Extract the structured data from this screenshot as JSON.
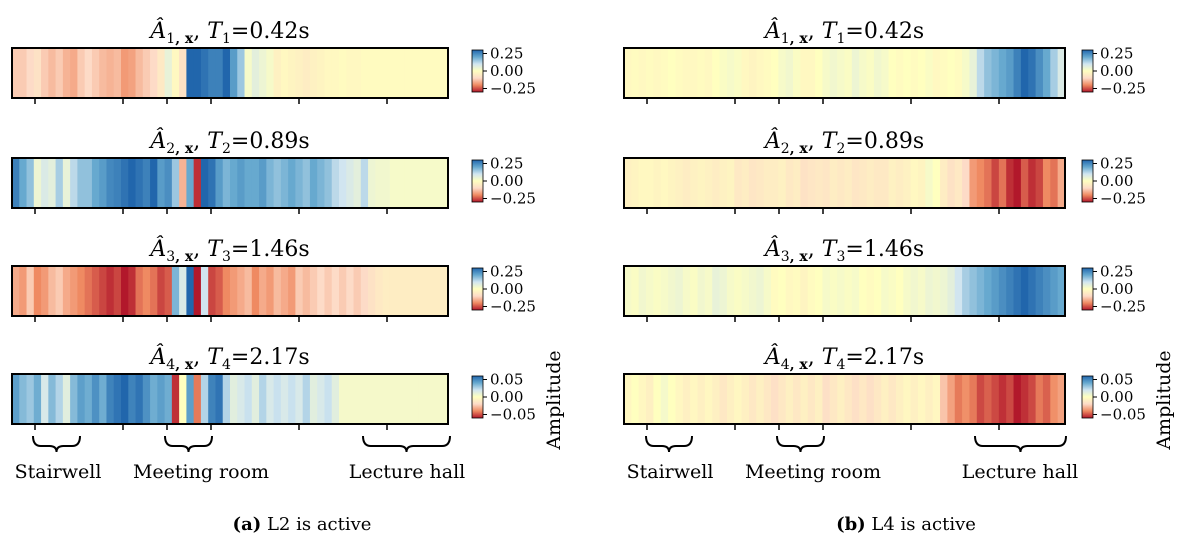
{
  "figure": {
    "cmap": [
      "#b2182b",
      "#ef8a62",
      "#fddbc7",
      "#ffffbf",
      "#d1e5f0",
      "#67a9cf",
      "#2166ac"
    ],
    "cbar_label": "Amplitude",
    "captions": [
      {
        "tag": "(a)",
        "text": " L2 is active"
      },
      {
        "tag": "(b)",
        "text": " L4 is active"
      }
    ],
    "region_labels": [
      "Stairwell",
      "Meeting room",
      "Lecture hall"
    ],
    "panels": [
      {
        "rows": [
          {
            "idx": "1",
            "period": "0.42s",
            "ticks": [
              "0.25",
              "0.00",
              "−0.25"
            ]
          },
          {
            "idx": "2",
            "period": "0.89s",
            "ticks": [
              "0.25",
              "0.00",
              "−0.25"
            ]
          },
          {
            "idx": "3",
            "period": "1.46s",
            "ticks": [
              "0.25",
              "0.00",
              "−0.25"
            ]
          },
          {
            "idx": "4",
            "period": "2.17s",
            "ticks": [
              "0.05",
              "0.00",
              "−0.05"
            ]
          }
        ]
      },
      {
        "rows": [
          {
            "idx": "1",
            "period": "0.42s",
            "ticks": [
              "0.25",
              "0.00",
              "−0.25"
            ]
          },
          {
            "idx": "2",
            "period": "0.89s",
            "ticks": [
              "0.25",
              "0.00",
              "−0.25"
            ]
          },
          {
            "idx": "3",
            "period": "1.46s",
            "ticks": [
              "0.25",
              "0.00",
              "−0.25"
            ]
          },
          {
            "idx": "4",
            "period": "2.17s",
            "ticks": [
              "0.05",
              "0.00",
              "−0.05"
            ]
          }
        ]
      }
    ]
  },
  "chart_data": [
    {
      "type": "heatmap",
      "panel": "(a) L2 is active",
      "rows": [
        {
          "title": "Â1,x, T1=0.42s",
          "vmin": -0.3,
          "vmax": 0.3,
          "values": [
            -0.12,
            -0.12,
            -0.1,
            -0.08,
            -0.12,
            -0.14,
            -0.12,
            -0.15,
            -0.16,
            -0.12,
            -0.1,
            -0.12,
            -0.14,
            -0.15,
            -0.14,
            -0.18,
            -0.17,
            -0.14,
            -0.12,
            -0.1,
            -0.06,
            0.05,
            -0.02,
            -0.08,
            0.3,
            0.32,
            0.28,
            0.26,
            0.26,
            0.3,
            0.22,
            0.15,
            0.02,
            0.06,
            0.04,
            0.02,
            -0.04,
            -0.02,
            -0.03,
            -0.04,
            -0.05,
            -0.04,
            -0.03,
            -0.02,
            -0.02,
            -0.01,
            -0.02,
            -0.02,
            -0.01,
            -0.01,
            -0.01,
            -0.01,
            -0.01,
            -0.01,
            -0.01,
            -0.01,
            -0.01,
            -0.01,
            -0.01,
            -0.01
          ]
        },
        {
          "title": "Â2,x, T2=0.89s",
          "vmin": -0.3,
          "vmax": 0.3,
          "values": [
            0.26,
            0.2,
            0.16,
            0.04,
            0.08,
            0.06,
            0.14,
            0.05,
            0.12,
            0.16,
            0.16,
            0.2,
            0.22,
            0.25,
            0.26,
            0.28,
            0.3,
            0.28,
            0.26,
            0.3,
            0.22,
            0.24,
            0.15,
            -0.15,
            0.2,
            -0.28,
            0.3,
            0.28,
            0.22,
            0.18,
            0.2,
            0.22,
            0.2,
            0.2,
            0.22,
            0.18,
            0.16,
            0.18,
            0.2,
            0.18,
            0.16,
            0.2,
            0.18,
            0.16,
            0.12,
            0.1,
            0.08,
            0.06,
            0.12,
            0.04,
            0.03,
            0.03,
            0.02,
            0.02,
            0.02,
            0.02,
            0.02,
            0.02,
            0.02,
            0.02
          ]
        },
        {
          "title": "Â3,x, T3=1.46s",
          "vmin": -0.3,
          "vmax": 0.3,
          "values": [
            -0.16,
            -0.18,
            -0.12,
            -0.2,
            -0.18,
            -0.14,
            -0.12,
            -0.16,
            -0.18,
            -0.2,
            -0.22,
            -0.24,
            -0.26,
            -0.28,
            -0.26,
            -0.3,
            -0.28,
            -0.22,
            -0.2,
            -0.22,
            -0.26,
            -0.24,
            0.18,
            0.08,
            0.3,
            -0.3,
            0.1,
            -0.26,
            -0.24,
            -0.2,
            -0.18,
            -0.16,
            -0.14,
            -0.2,
            -0.16,
            -0.18,
            -0.14,
            -0.16,
            -0.18,
            -0.12,
            -0.14,
            -0.12,
            -0.1,
            -0.12,
            -0.1,
            -0.12,
            -0.1,
            -0.12,
            -0.1,
            -0.08,
            -0.06,
            -0.05,
            -0.05,
            -0.05,
            -0.05,
            -0.05,
            -0.05,
            -0.05,
            -0.05,
            -0.05
          ]
        },
        {
          "title": "Â4,x, T4=2.17s",
          "vmin": -0.07,
          "vmax": 0.07,
          "values": [
            0.05,
            0.04,
            0.035,
            0.045,
            0.02,
            0.04,
            0.03,
            0.015,
            0.04,
            0.05,
            0.045,
            0.055,
            0.045,
            0.06,
            0.065,
            0.07,
            0.06,
            0.065,
            0.055,
            0.045,
            0.05,
            0.045,
            -0.065,
            0.0,
            0.05,
            -0.05,
            0.03,
            0.06,
            0.065,
            0.03,
            0.015,
            0.02,
            0.025,
            0.015,
            0.03,
            0.02,
            0.025,
            0.02,
            0.025,
            0.02,
            0.03,
            0.015,
            0.02,
            0.025,
            0.015,
            0.005,
            0.005,
            0.005,
            0.005,
            0.005,
            0.005,
            0.005,
            0.005,
            0.005,
            0.005,
            0.005,
            0.005,
            0.005,
            0.005,
            0.005
          ]
        }
      ]
    },
    {
      "type": "heatmap",
      "panel": "(b) L4 is active",
      "rows": [
        {
          "title": "Â1,x, T1=0.42s",
          "vmin": -0.3,
          "vmax": 0.3,
          "values": [
            -0.02,
            -0.01,
            -0.02,
            -0.01,
            -0.02,
            -0.01,
            0.0,
            -0.01,
            -0.02,
            -0.02,
            -0.01,
            -0.02,
            0.0,
            0.01,
            0.02,
            0.01,
            -0.02,
            -0.03,
            -0.02,
            -0.01,
            0.0,
            0.02,
            0.03,
            0.01,
            -0.02,
            -0.02,
            0.0,
            0.02,
            0.03,
            0.02,
            0.01,
            0.04,
            0.02,
            0.01,
            0.03,
            0.02,
            0.0,
            -0.01,
            0.0,
            -0.01,
            0.0,
            0.01,
            -0.02,
            -0.01,
            0.0,
            -0.01,
            0.02,
            0.05,
            0.12,
            0.16,
            0.18,
            0.2,
            0.22,
            0.26,
            0.3,
            0.28,
            0.24,
            0.2,
            0.14,
            0.08
          ]
        },
        {
          "title": "Â2,x, T2=0.89s",
          "vmin": -0.3,
          "vmax": 0.3,
          "values": [
            -0.04,
            -0.03,
            -0.02,
            -0.02,
            -0.03,
            -0.02,
            -0.03,
            -0.04,
            -0.05,
            -0.04,
            -0.03,
            -0.04,
            -0.05,
            -0.04,
            -0.03,
            -0.06,
            -0.05,
            -0.07,
            -0.06,
            -0.05,
            -0.05,
            -0.04,
            -0.06,
            -0.05,
            -0.08,
            -0.07,
            -0.06,
            -0.07,
            -0.05,
            -0.06,
            -0.05,
            -0.07,
            -0.06,
            -0.05,
            -0.06,
            -0.06,
            -0.04,
            -0.05,
            -0.04,
            -0.02,
            -0.03,
            0.02,
            0.0,
            -0.05,
            -0.08,
            -0.06,
            -0.1,
            -0.18,
            -0.2,
            -0.22,
            -0.26,
            -0.22,
            -0.28,
            -0.3,
            -0.24,
            -0.28,
            -0.26,
            -0.2,
            -0.22,
            -0.16
          ]
        },
        {
          "title": "Â3,x, T3=1.46s",
          "vmin": -0.3,
          "vmax": 0.3,
          "values": [
            0.02,
            0.01,
            0.03,
            0.02,
            0.01,
            0.02,
            0.03,
            0.04,
            0.02,
            0.01,
            0.03,
            0.02,
            0.05,
            0.04,
            0.02,
            0.01,
            0.02,
            0.03,
            0.04,
            0.02,
            -0.01,
            0.0,
            -0.02,
            -0.01,
            -0.03,
            -0.01,
            0.0,
            0.02,
            0.01,
            0.02,
            0.01,
            0.02,
            0.0,
            -0.01,
            0.0,
            0.02,
            0.01,
            0.0,
            0.02,
            0.03,
            0.02,
            0.04,
            0.03,
            0.04,
            0.06,
            0.1,
            0.14,
            0.16,
            0.18,
            0.2,
            0.22,
            0.24,
            0.26,
            0.28,
            0.3,
            0.28,
            0.26,
            0.24,
            0.22,
            0.2
          ]
        },
        {
          "title": "Â4,x, T4=2.17s",
          "vmin": -0.07,
          "vmax": 0.07,
          "values": [
            -0.005,
            0.0,
            -0.005,
            -0.01,
            0.0,
            0.005,
            0.0,
            -0.005,
            -0.01,
            -0.005,
            -0.01,
            -0.005,
            -0.01,
            -0.015,
            -0.01,
            -0.005,
            -0.01,
            -0.015,
            -0.01,
            -0.015,
            -0.02,
            -0.015,
            -0.01,
            -0.015,
            -0.01,
            -0.015,
            -0.01,
            -0.02,
            -0.015,
            -0.01,
            -0.015,
            -0.02,
            -0.015,
            -0.02,
            -0.015,
            -0.01,
            -0.015,
            -0.01,
            -0.005,
            -0.01,
            -0.005,
            -0.01,
            -0.005,
            -0.03,
            -0.04,
            -0.05,
            -0.045,
            -0.05,
            -0.06,
            -0.055,
            -0.06,
            -0.065,
            -0.06,
            -0.07,
            -0.065,
            -0.06,
            -0.05,
            -0.055,
            -0.045,
            -0.04
          ]
        }
      ]
    }
  ]
}
